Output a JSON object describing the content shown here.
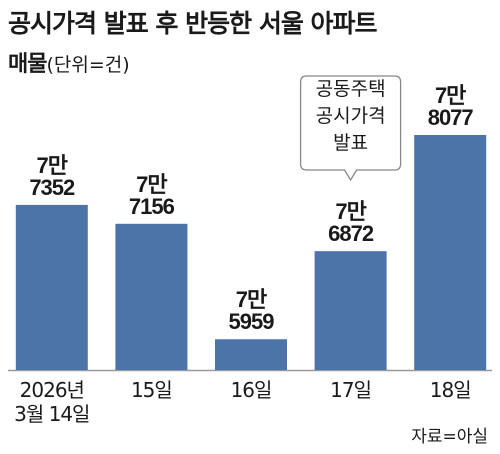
{
  "chart_data": {
    "type": "bar",
    "title": "공시가격 발표 후 반등한 서울 아파트",
    "subtitle": "매물",
    "unit": "(단위=건)",
    "categories": [
      "2026년\n3월 14일",
      "15일",
      "16일",
      "17일",
      "18일"
    ],
    "values": [
      77352,
      77156,
      75959,
      76872,
      78077
    ],
    "value_labels": [
      "7만\n7352",
      "7만\n7156",
      "7만\n5959",
      "7만\n6872",
      "7만\n8077"
    ],
    "color": "#4d74a8",
    "ylim": [
      75640,
      78170
    ],
    "annotation": {
      "text": "공동주택\n공시가격\n발표",
      "category_index": 3
    },
    "source": "자료=아실"
  }
}
